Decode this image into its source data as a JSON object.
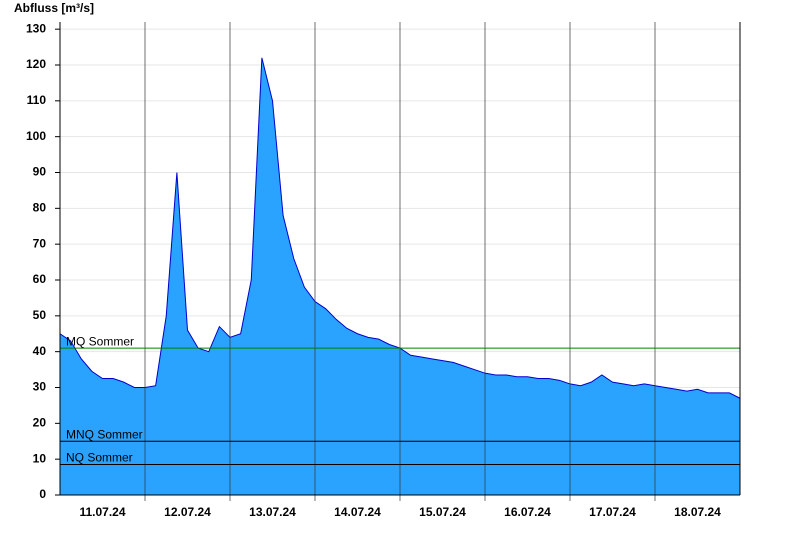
{
  "chart_data": {
    "type": "area",
    "y_label": "Abfluss [m³/s]",
    "xtick_labels": [
      "11.07.24",
      "12.07.24",
      "13.07.24",
      "14.07.24",
      "15.07.24",
      "16.07.24",
      "17.07.24",
      "18.07.24"
    ],
    "values": [
      45,
      43,
      38,
      34.5,
      32.5,
      32.5,
      31.5,
      30,
      30,
      30.5,
      50,
      90,
      46,
      41,
      40,
      47,
      44,
      45,
      60,
      122,
      110,
      78,
      66,
      58,
      54,
      52,
      49,
      46.5,
      45,
      44,
      43.5,
      42,
      41,
      39,
      38.5,
      38,
      37.5,
      37,
      36,
      35,
      34,
      33.5,
      33.5,
      33,
      33,
      32.5,
      32.5,
      32,
      31,
      30.5,
      31.5,
      33.5,
      31.5,
      31,
      30.5,
      31,
      30.5,
      30,
      29.5,
      29,
      29.5,
      28.5,
      28.5,
      28.5,
      27
    ],
    "color": "#29a3ff",
    "line_color": "#0000cc",
    "ylim": [
      0,
      132
    ],
    "yticks": [
      0,
      10,
      20,
      30,
      40,
      50,
      60,
      70,
      80,
      90,
      100,
      110,
      120,
      130
    ],
    "grid": true,
    "reference_lines": [
      {
        "label": "MQ Sommer",
        "value": 41,
        "color": "#008000"
      },
      {
        "label": "MNQ Sommer",
        "value": 15,
        "color": "#000000"
      },
      {
        "label": "NQ Sommer",
        "value": 8.5,
        "color": "#000000"
      }
    ]
  }
}
